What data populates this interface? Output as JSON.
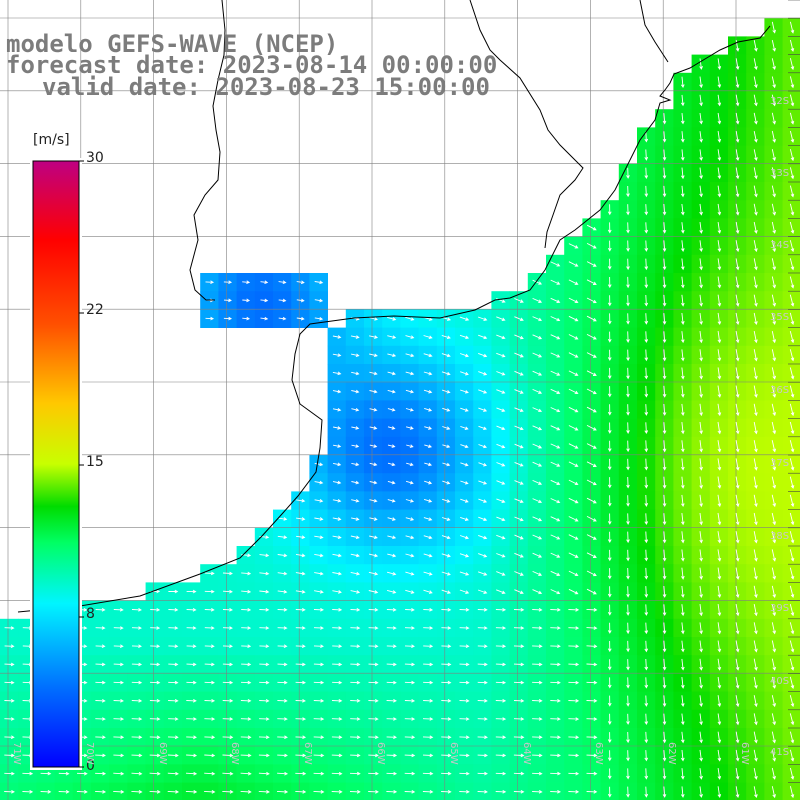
{
  "title": {
    "line1": "modelo GEFS-WAVE (NCEP)",
    "line2": "forecast date: 2023-08-14 00:00:00",
    "line3": "valid date: 2023-08-23 15:00:00"
  },
  "colorbar": {
    "unit": "[m/s]",
    "ticks": [
      "30",
      "22",
      "15",
      "8",
      "0"
    ],
    "range": [
      0,
      30
    ]
  },
  "axes": {
    "lat_labels": [
      "32S",
      "33S",
      "34S",
      "35S",
      "36S",
      "37S",
      "38S",
      "39S",
      "40S",
      "41S"
    ],
    "lon_labels": [
      "71W",
      "70W",
      "69W",
      "68W",
      "67W",
      "66W",
      "65W",
      "64W",
      "63W",
      "62W",
      "61W"
    ],
    "grid": true
  },
  "colors": {
    "title": "#7c7c7c",
    "land": "#ffffff",
    "coastline": "#000000",
    "grid": "#808080",
    "arrows": "#ffffff"
  }
}
